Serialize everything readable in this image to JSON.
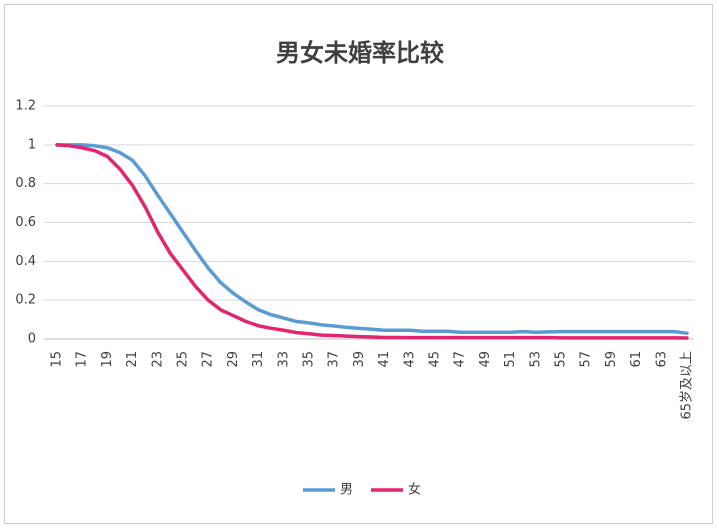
{
  "chart_data": {
    "type": "line",
    "title": "男女未婚率比较",
    "categories": [
      15,
      null,
      17,
      null,
      19,
      null,
      21,
      null,
      23,
      null,
      25,
      null,
      27,
      null,
      29,
      null,
      31,
      null,
      33,
      null,
      35,
      null,
      37,
      null,
      39,
      null,
      41,
      null,
      43,
      null,
      45,
      null,
      47,
      null,
      49,
      null,
      51,
      null,
      53,
      null,
      55,
      null,
      57,
      null,
      59,
      null,
      61,
      null,
      63,
      null,
      "65岁及以上"
    ],
    "series": [
      {
        "name": "男",
        "color": "#5b9bd5",
        "values": [
          1,
          1,
          1,
          0.995,
          0.985,
          0.96,
          0.92,
          0.84,
          0.74,
          0.645,
          0.55,
          0.455,
          0.365,
          0.29,
          0.235,
          0.19,
          0.15,
          0.125,
          0.108,
          0.09,
          0.083,
          0.073,
          0.067,
          0.06,
          0.055,
          0.05,
          0.045,
          0.045,
          0.045,
          0.04,
          0.04,
          0.04,
          0.035,
          0.035,
          0.035,
          0.035,
          0.035,
          0.038,
          0.035,
          0.037,
          0.038,
          0.038,
          0.038,
          0.038,
          0.038,
          0.038,
          0.038,
          0.038,
          0.038,
          0.038,
          0.03
        ]
      },
      {
        "name": "女",
        "color": "#e3246e",
        "values": [
          1,
          0.995,
          0.985,
          0.97,
          0.94,
          0.875,
          0.79,
          0.68,
          0.55,
          0.44,
          0.355,
          0.27,
          0.2,
          0.15,
          0.12,
          0.09,
          0.068,
          0.055,
          0.045,
          0.033,
          0.027,
          0.02,
          0.018,
          0.015,
          0.012,
          0.01,
          0.008,
          0.008,
          0.007,
          0.007,
          0.007,
          0.007,
          0.007,
          0.007,
          0.007,
          0.007,
          0.007,
          0.007,
          0.007,
          0.007,
          0.006,
          0.006,
          0.006,
          0.006,
          0.006,
          0.006,
          0.006,
          0.006,
          0.006,
          0.006,
          0.005
        ]
      }
    ],
    "ylim": [
      0,
      1.2
    ],
    "yticks": [
      0,
      0.2,
      0.4,
      0.6,
      0.8,
      1,
      1.2
    ],
    "grid": true,
    "legend": "bottom"
  }
}
